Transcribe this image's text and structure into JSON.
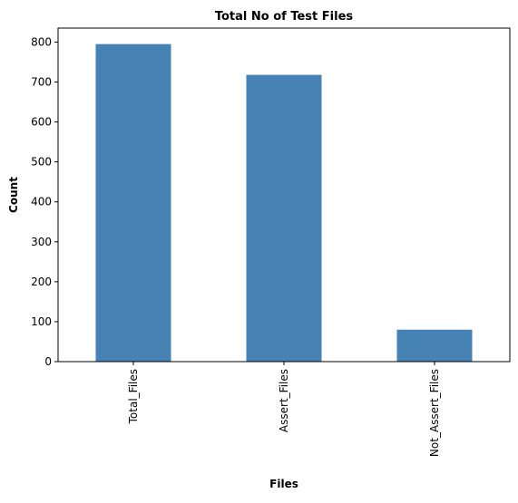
{
  "chart_data": {
    "type": "bar",
    "title": "Total No of Test Files",
    "xlabel": "Files",
    "ylabel": "Count",
    "categories": [
      "Total_Files",
      "Assert_Files",
      "Not_Assert_Files"
    ],
    "values": [
      795,
      718,
      80
    ],
    "ylim": [
      0,
      835
    ],
    "yticks": [
      "0",
      "100",
      "200",
      "300",
      "400",
      "500",
      "600",
      "700",
      "800"
    ],
    "bar_color": "#4682b4",
    "grid": false,
    "legend": "none"
  }
}
